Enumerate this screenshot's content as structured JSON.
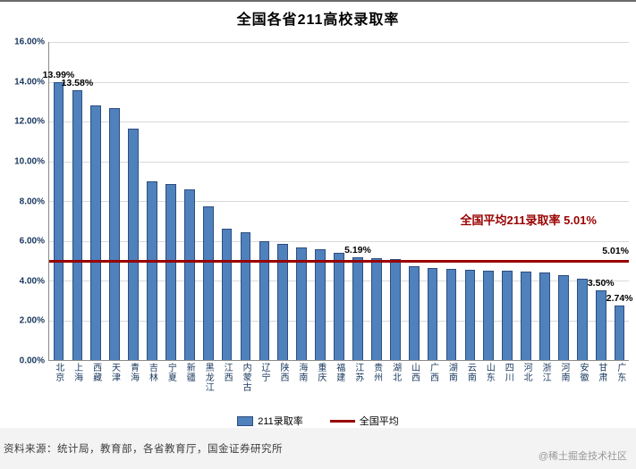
{
  "title": "全国各省211高校录取率",
  "annotation": {
    "text": "全国平均211录取率 5.01%",
    "line_end_label": "5.01%"
  },
  "legend": {
    "bar_label": "211录取率",
    "line_label": "全国平均"
  },
  "footer": {
    "source": "资料来源：统计局，教育部，各省教育厅，国金证券研究所",
    "watermark": "@稀土掘金技术社区"
  },
  "colors": {
    "bar": "#4F81BD",
    "bar_border": "#2E4E7E",
    "average_line": "#990000",
    "annotation_text": "#990000",
    "grid": "#d9d9d9",
    "axis_text": "#17375D"
  },
  "chart_data": {
    "type": "bar",
    "title": "全国各省211高校录取率",
    "xlabel": "",
    "ylabel": "",
    "ylim": [
      0,
      16
    ],
    "grid": true,
    "legend_position": "bottom",
    "yticks": [
      "0.00%",
      "2.00%",
      "4.00%",
      "6.00%",
      "8.00%",
      "10.00%",
      "12.00%",
      "14.00%",
      "16.00%"
    ],
    "categories": [
      "北京",
      "上海",
      "西藏",
      "天津",
      "青海",
      "吉林",
      "宁夏",
      "新疆",
      "黑龙江",
      "江西",
      "内蒙古",
      "辽宁",
      "陕西",
      "海南",
      "重庆",
      "福建",
      "江苏",
      "贵州",
      "湖北",
      "山西",
      "广西",
      "湖南",
      "云南",
      "山东",
      "四川",
      "河北",
      "浙江",
      "河南",
      "安徽",
      "甘肃",
      "广东"
    ],
    "values": [
      13.99,
      13.58,
      12.83,
      12.68,
      11.66,
      8.98,
      8.85,
      8.59,
      7.74,
      6.6,
      6.41,
      5.97,
      5.85,
      5.66,
      5.58,
      5.4,
      5.19,
      5.14,
      5.08,
      4.72,
      4.65,
      4.58,
      4.52,
      4.5,
      4.48,
      4.45,
      4.42,
      4.25,
      4.1,
      3.5,
      2.74
    ],
    "bar_labels": {
      "0": "13.99%",
      "1": "13.58%",
      "16": "5.19%",
      "29": "3.50%",
      "30": "2.74%"
    },
    "average": {
      "value": 5.01,
      "label": "5.01%",
      "annotation": "全国平均211录取率 5.01%"
    },
    "series": [
      {
        "name": "211录取率",
        "type": "bar",
        "color": "#4F81BD"
      },
      {
        "name": "全国平均",
        "type": "line",
        "color": "#990000"
      }
    ]
  }
}
